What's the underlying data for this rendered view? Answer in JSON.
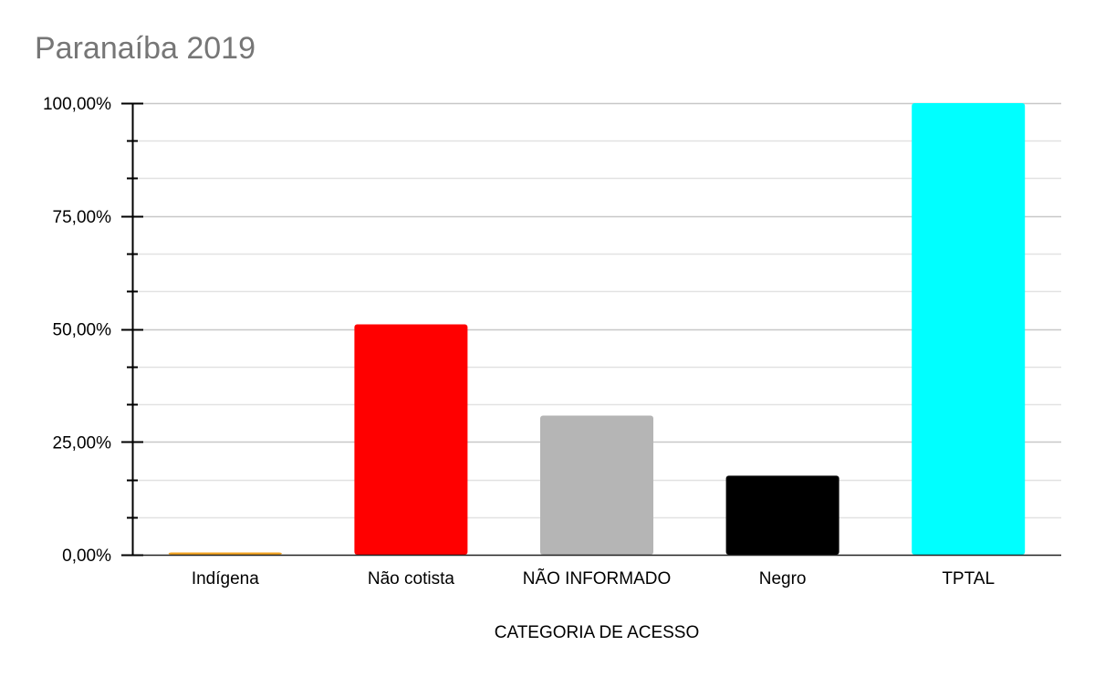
{
  "chart_data": {
    "type": "bar",
    "title": "Paranaíba 2019",
    "xlabel": "CATEGORIA DE ACESSO",
    "ylabel": "",
    "categories": [
      "Indígena",
      "Não cotista",
      "NÃO INFORMADO",
      "Negro",
      "TPTAL"
    ],
    "values": [
      0.5,
      51.0,
      30.8,
      17.5,
      100.0
    ],
    "colors": [
      "#F5A623",
      "#FF0000",
      "#B5B5B5",
      "#000000",
      "#00FFFF"
    ],
    "ylim": [
      0,
      100
    ],
    "yticks": [
      0,
      25,
      50,
      75,
      100
    ],
    "ytick_labels": [
      "0,00%",
      "25,00%",
      "50,00%",
      "75,00%",
      "100,00%"
    ],
    "grid": true,
    "legend": "none"
  }
}
